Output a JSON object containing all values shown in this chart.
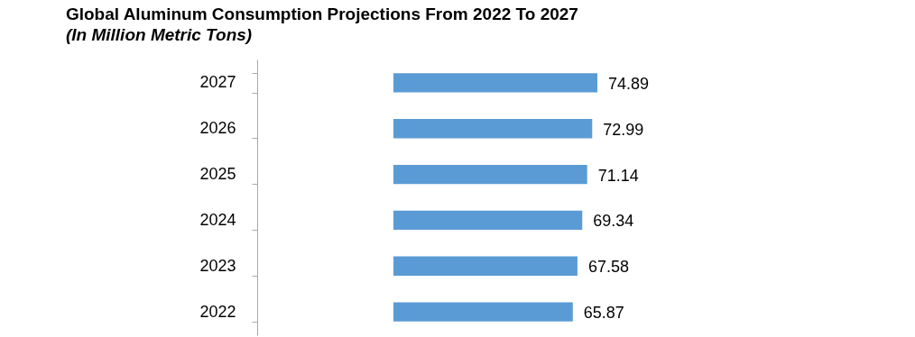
{
  "chart_data": {
    "type": "bar",
    "orientation": "horizontal",
    "title": "Global Aluminum Consumption Projections From 2022 To 2027",
    "subtitle": "(In Million Metric Tons)",
    "categories": [
      "2027",
      "2026",
      "2025",
      "2024",
      "2023",
      "2022"
    ],
    "values": [
      74.89,
      72.99,
      71.14,
      69.34,
      67.58,
      65.87
    ],
    "color": "#5b9bd5",
    "tick_labels": "y",
    "data_labels": true
  }
}
